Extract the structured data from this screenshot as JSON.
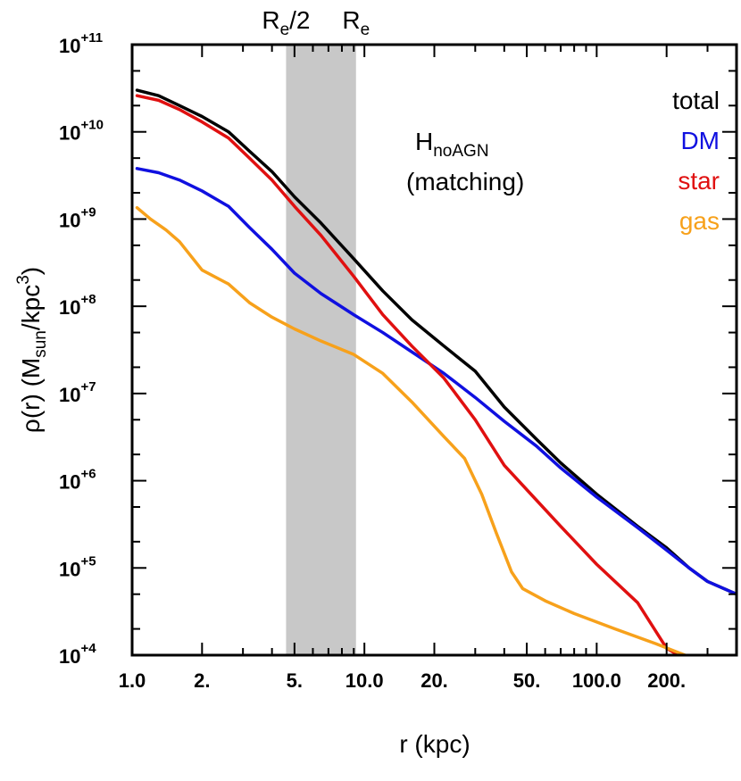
{
  "chart_data": {
    "type": "line",
    "title": "",
    "xlabel": "r (kpc)",
    "ylabel": {
      "prefix": "ρ(r) (M",
      "sub": "sun",
      "mid": "/kpc",
      "sup": "3",
      "suffix": ")"
    },
    "xscale": "log",
    "yscale": "log",
    "xlim": [
      1.0,
      400.0
    ],
    "ylim": [
      10000,
      100000000000
    ],
    "xticks": [
      {
        "value": 1.0,
        "label": "1.0"
      },
      {
        "value": 2.0,
        "label": "2."
      },
      {
        "value": 5.0,
        "label": "5."
      },
      {
        "value": 10.0,
        "label": "10.0"
      },
      {
        "value": 20.0,
        "label": "20."
      },
      {
        "value": 50.0,
        "label": "50."
      },
      {
        "value": 100.0,
        "label": "100.0"
      },
      {
        "value": 200.0,
        "label": "200."
      }
    ],
    "yticks": [
      {
        "exp": 4,
        "base": "10",
        "sup": "+4"
      },
      {
        "exp": 5,
        "base": "10",
        "sup": "+5"
      },
      {
        "exp": 6,
        "base": "10",
        "sup": "+6"
      },
      {
        "exp": 7,
        "base": "10",
        "sup": "+7"
      },
      {
        "exp": 8,
        "base": "10",
        "sup": "+8"
      },
      {
        "exp": 9,
        "base": "10",
        "sup": "+9"
      },
      {
        "exp": 10,
        "base": "10",
        "sup": "+10"
      },
      {
        "exp": 11,
        "base": "10",
        "sup": "+11"
      }
    ],
    "shaded_band": {
      "x_from": 4.6,
      "x_to": 9.2,
      "color": "#c8c8c8"
    },
    "band_labels": [
      {
        "x": 4.6,
        "base": "R",
        "sub": "e",
        "suffix": "/2"
      },
      {
        "x": 9.2,
        "base": "R",
        "sub": "e",
        "suffix": ""
      }
    ],
    "annotation": {
      "main": "H",
      "sub": "noAGN",
      "line2": "(matching)"
    },
    "legend_position": "top-right",
    "series": [
      {
        "name": "total",
        "color": "#000000",
        "x": [
          1.05,
          1.3,
          1.6,
          2.0,
          2.6,
          3.2,
          4.0,
          5.0,
          6.5,
          9.0,
          12.0,
          16.0,
          22.0,
          30.0,
          40.0,
          55.0,
          70.0,
          100.0,
          150.0,
          200.0,
          250.0,
          300.0,
          400.0
        ],
        "y": [
          30000000000.0,
          26000000000.0,
          20000000000.0,
          15000000000.0,
          10000000000.0,
          6000000000.0,
          3500000000.0,
          1800000000.0,
          900000000.0,
          350000000.0,
          150000000.0,
          70000000.0,
          35000000.0,
          18000000.0,
          7000000.0,
          3000000.0,
          1600000.0,
          700000.0,
          300000.0,
          170000.0,
          100000.0,
          70000.0,
          50000.0
        ]
      },
      {
        "name": "DM",
        "color": "#1010e0",
        "x": [
          1.05,
          1.3,
          1.6,
          2.0,
          2.6,
          3.2,
          4.0,
          5.0,
          6.5,
          9.0,
          12.0,
          16.0,
          22.0,
          30.0,
          40.0,
          55.0,
          70.0,
          100.0,
          150.0,
          200.0,
          250.0,
          300.0,
          400.0
        ],
        "y": [
          3800000000.0,
          3400000000.0,
          2800000000.0,
          2100000000.0,
          1400000000.0,
          800000000.0,
          450000000.0,
          240000000.0,
          140000000.0,
          80000000.0,
          50000000.0,
          30000000.0,
          17000000.0,
          9000000.0,
          4800000.0,
          2500000.0,
          1400000.0,
          650000.0,
          290000.0,
          160000.0,
          100000.0,
          70000.0,
          50000.0
        ]
      },
      {
        "name": "star",
        "color": "#e01010",
        "x": [
          1.05,
          1.3,
          1.6,
          2.0,
          2.6,
          3.2,
          4.0,
          5.0,
          6.5,
          9.0,
          12.0,
          16.0,
          22.0,
          30.0,
          40.0,
          55.0,
          70.0,
          100.0,
          150.0,
          200.0,
          240.0
        ],
        "y": [
          26000000000.0,
          23000000000.0,
          18000000000.0,
          13000000000.0,
          8500000000.0,
          5000000000.0,
          2800000000.0,
          1400000000.0,
          650000000.0,
          220000000.0,
          80000000.0,
          35000000.0,
          15000000.0,
          5000000.0,
          1500000.0,
          600000.0,
          300000.0,
          110000.0,
          40000.0,
          12000.0,
          9000.0
        ]
      },
      {
        "name": "gas",
        "color": "#f7a11b",
        "x": [
          1.05,
          1.2,
          1.4,
          1.6,
          2.0,
          2.6,
          3.2,
          4.0,
          5.0,
          6.5,
          9.0,
          12.0,
          16.0,
          22.0,
          27.0,
          32.0,
          37.0,
          43.0,
          48.0,
          60.0,
          80.0,
          120.0,
          180.0,
          240.0,
          290.0
        ],
        "y": [
          1350000000.0,
          1000000000.0,
          750000000.0,
          550000000.0,
          260000000.0,
          180000000.0,
          110000000.0,
          75000000.0,
          55000000.0,
          40000000.0,
          28000000.0,
          17000000.0,
          8000000.0,
          3200000.0,
          1800000.0,
          700000.0,
          250000.0,
          90000.0,
          58000.0,
          42000.0,
          30000.0,
          20000.0,
          13500.0,
          10000.0,
          8000.0
        ]
      }
    ]
  }
}
